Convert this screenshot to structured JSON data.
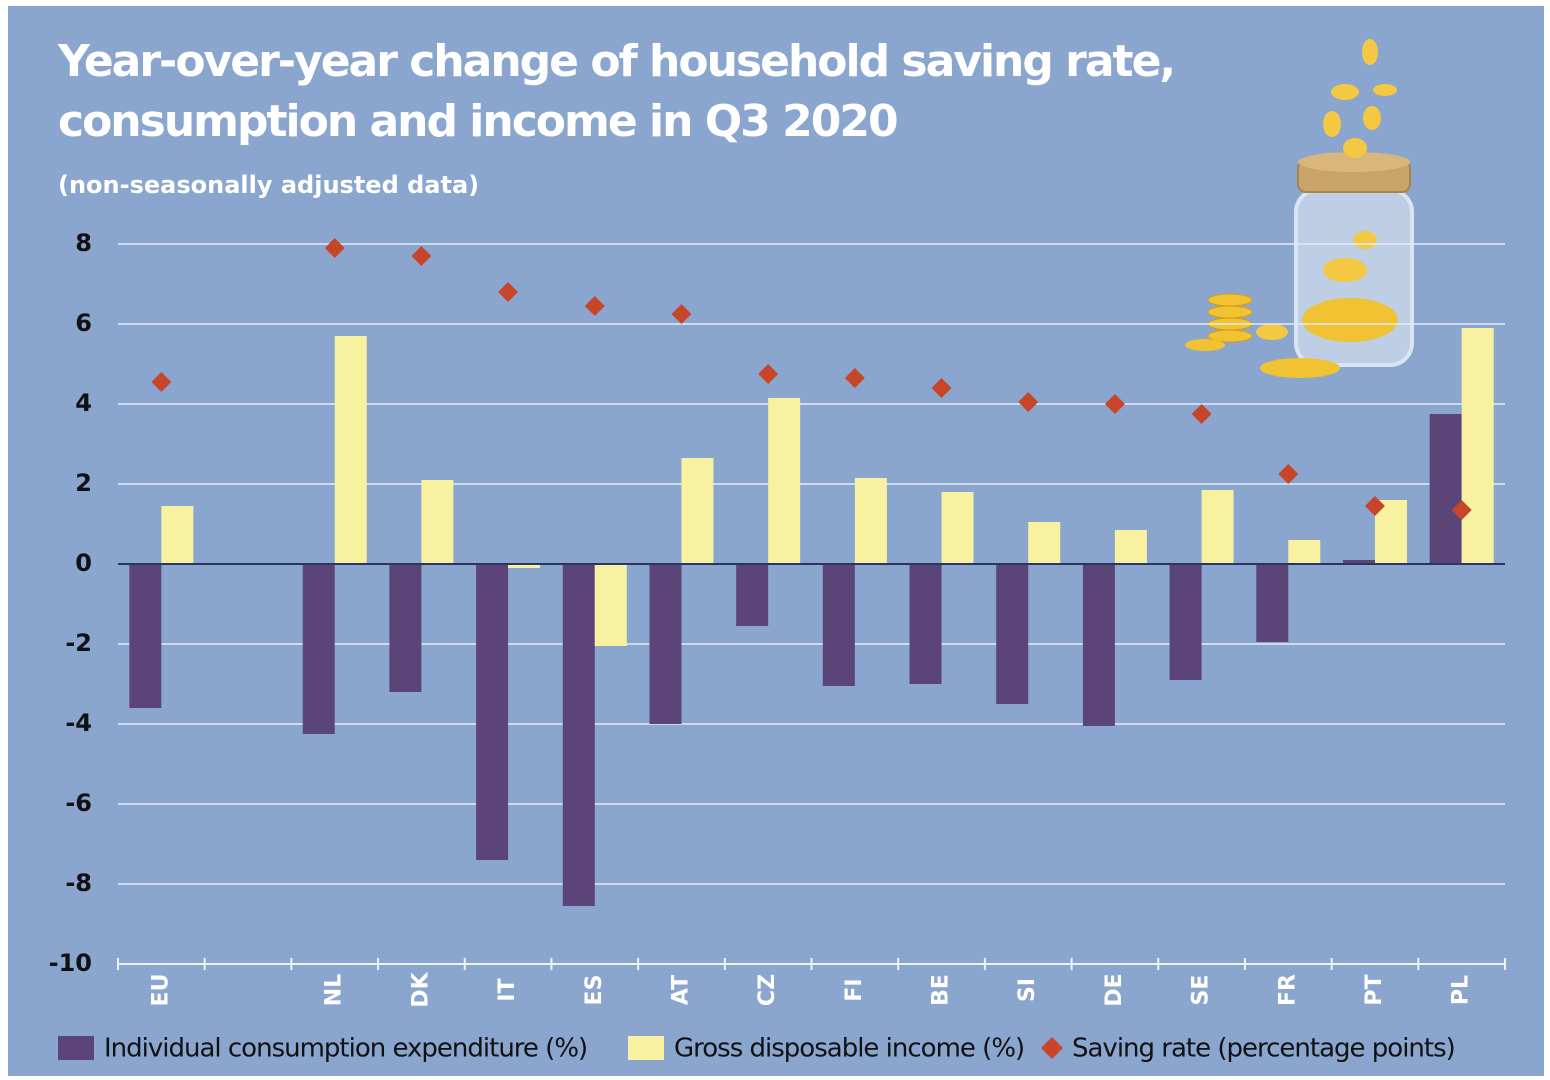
{
  "chart_data": {
    "type": "bar",
    "title": [
      "Year-over-year change of household saving rate,",
      "consumption and income in Q3 2020"
    ],
    "subtitle": "(non-seasonally adjusted data)",
    "categories": [
      "EU",
      null,
      "NL",
      "DK",
      "IT",
      "ES",
      "AT",
      "CZ",
      "FI",
      "BE",
      "SI",
      "DE",
      "SE",
      "FR",
      "PT",
      "PL"
    ],
    "series": [
      {
        "name": "Individual consumption expenditure (%)",
        "color": "#5a4478",
        "marker": "bar",
        "values": [
          -3.6,
          null,
          -4.25,
          -3.2,
          -7.4,
          -8.55,
          -4.0,
          -1.55,
          -3.05,
          -3.0,
          -3.5,
          -4.05,
          -2.9,
          -1.95,
          0.1,
          3.75
        ]
      },
      {
        "name": "Gross disposable income (%)",
        "color": "#f8f1a0",
        "marker": "bar",
        "values": [
          1.45,
          null,
          5.7,
          2.1,
          -0.1,
          -2.05,
          2.65,
          4.15,
          2.15,
          1.8,
          1.05,
          0.85,
          1.85,
          0.6,
          1.6,
          5.9
        ]
      },
      {
        "name": "Saving rate (percentage points)",
        "color": "#c7462a",
        "marker": "diamond",
        "values": [
          4.55,
          null,
          7.9,
          7.7,
          6.8,
          6.45,
          6.25,
          4.75,
          4.65,
          4.4,
          4.05,
          4.0,
          3.75,
          2.25,
          1.45,
          1.35
        ]
      }
    ],
    "ylim": [
      -10,
      8
    ],
    "yticks": [
      -10,
      -8,
      -6,
      -4,
      -2,
      0,
      2,
      4,
      6,
      8
    ],
    "grid": true
  }
}
